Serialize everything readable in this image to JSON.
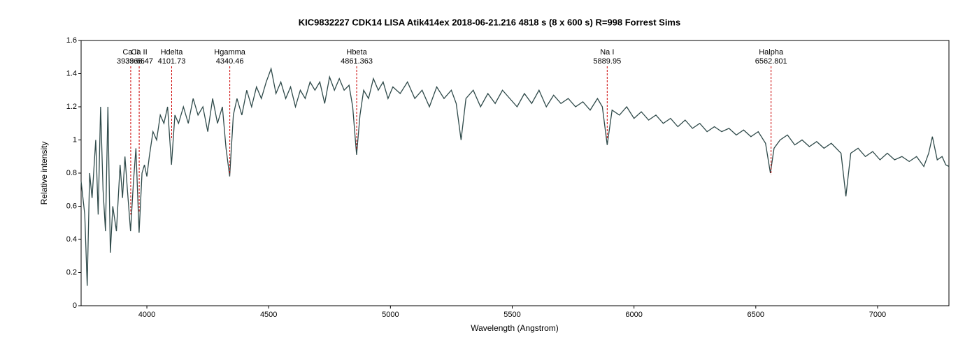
{
  "chart_data": {
    "type": "line",
    "title": "KIC9832227 CDK14 LISA Atik414ex  2018-06-21.216  4818 s (8 x 600 s) R=998  Forrest Sims",
    "xlabel": "Wavelength (Angstrom)",
    "ylabel": "Relative intensity",
    "xlim": [
      3730,
      7293
    ],
    "xticks": [
      4000,
      4500,
      5000,
      5500,
      6000,
      6500,
      7000
    ],
    "ylim": [
      0,
      1.6
    ],
    "yticks": [
      0,
      0.2,
      0.4,
      0.6,
      0.8,
      1,
      1.2,
      1.4,
      1.6
    ],
    "color": "#2f4a4a",
    "x": [
      3730,
      3745,
      3755,
      3765,
      3775,
      3790,
      3800,
      3810,
      3820,
      3830,
      3840,
      3850,
      3860,
      3875,
      3890,
      3900,
      3910,
      3920,
      3933,
      3945,
      3955,
      3968,
      3980,
      3990,
      4000,
      4010,
      4025,
      4040,
      4055,
      4070,
      4085,
      4101,
      4115,
      4130,
      4150,
      4170,
      4190,
      4210,
      4230,
      4250,
      4270,
      4290,
      4310,
      4325,
      4340,
      4355,
      4370,
      4390,
      4410,
      4430,
      4450,
      4470,
      4490,
      4510,
      4530,
      4550,
      4570,
      4590,
      4610,
      4630,
      4650,
      4670,
      4690,
      4710,
      4730,
      4750,
      4770,
      4790,
      4810,
      4830,
      4845,
      4861,
      4875,
      4890,
      4910,
      4930,
      4950,
      4970,
      4990,
      5010,
      5040,
      5070,
      5100,
      5130,
      5160,
      5190,
      5220,
      5250,
      5270,
      5290,
      5310,
      5340,
      5370,
      5400,
      5430,
      5460,
      5490,
      5520,
      5550,
      5580,
      5610,
      5640,
      5670,
      5700,
      5730,
      5760,
      5790,
      5820,
      5850,
      5870,
      5890,
      5910,
      5940,
      5970,
      6000,
      6030,
      6060,
      6090,
      6120,
      6150,
      6180,
      6210,
      6240,
      6270,
      6300,
      6330,
      6360,
      6390,
      6420,
      6450,
      6480,
      6510,
      6540,
      6560,
      6575,
      6600,
      6630,
      6660,
      6690,
      6720,
      6750,
      6780,
      6810,
      6850,
      6870,
      6890,
      6920,
      6950,
      6980,
      7010,
      7040,
      7070,
      7100,
      7130,
      7160,
      7190,
      7210,
      7225,
      7245,
      7265,
      7280,
      7293
    ],
    "values": [
      0.75,
      0.55,
      0.12,
      0.8,
      0.65,
      1.0,
      0.55,
      1.2,
      0.7,
      0.45,
      1.2,
      0.32,
      0.6,
      0.45,
      0.85,
      0.65,
      0.9,
      0.7,
      0.45,
      0.75,
      0.95,
      0.44,
      0.8,
      0.85,
      0.78,
      0.9,
      1.05,
      1.0,
      1.15,
      1.1,
      1.2,
      0.85,
      1.15,
      1.1,
      1.2,
      1.1,
      1.25,
      1.15,
      1.2,
      1.05,
      1.25,
      1.1,
      1.2,
      0.95,
      0.78,
      1.15,
      1.25,
      1.15,
      1.3,
      1.2,
      1.32,
      1.25,
      1.35,
      1.43,
      1.28,
      1.35,
      1.25,
      1.32,
      1.2,
      1.3,
      1.25,
      1.35,
      1.3,
      1.35,
      1.22,
      1.38,
      1.3,
      1.37,
      1.3,
      1.33,
      1.2,
      0.91,
      1.15,
      1.3,
      1.25,
      1.37,
      1.3,
      1.35,
      1.25,
      1.32,
      1.28,
      1.35,
      1.25,
      1.3,
      1.2,
      1.32,
      1.25,
      1.3,
      1.22,
      1.0,
      1.25,
      1.3,
      1.2,
      1.28,
      1.22,
      1.3,
      1.25,
      1.2,
      1.28,
      1.22,
      1.3,
      1.2,
      1.27,
      1.22,
      1.25,
      1.2,
      1.23,
      1.18,
      1.25,
      1.2,
      0.97,
      1.18,
      1.15,
      1.2,
      1.13,
      1.17,
      1.12,
      1.15,
      1.1,
      1.13,
      1.08,
      1.12,
      1.07,
      1.1,
      1.05,
      1.08,
      1.05,
      1.07,
      1.03,
      1.06,
      1.02,
      1.05,
      0.98,
      0.8,
      0.95,
      1.0,
      1.03,
      0.97,
      1.0,
      0.96,
      0.99,
      0.95,
      0.98,
      0.92,
      0.66,
      0.92,
      0.95,
      0.9,
      0.93,
      0.88,
      0.92,
      0.88,
      0.9,
      0.87,
      0.9,
      0.84,
      0.92,
      1.02,
      0.88,
      0.9,
      0.85,
      0.84
    ],
    "annotation_color": "#cc0000",
    "annotations": [
      {
        "label": "Ca II",
        "x": 3933.66,
        "y": 0.55
      },
      {
        "label": "Ca II",
        "x": 3968.47,
        "y": 0.56
      },
      {
        "label": "Hdelta",
        "x": 4101.73,
        "y": 1.0
      },
      {
        "label": "Hgamma",
        "x": 4340.46,
        "y": 0.79
      },
      {
        "label": "Hbeta",
        "x": 4861.363,
        "y": 0.94
      },
      {
        "label": "Na I",
        "x": 5889.95,
        "y": 1.01
      },
      {
        "label": "Halpha",
        "x": 6562.801,
        "y": 0.79
      }
    ]
  }
}
